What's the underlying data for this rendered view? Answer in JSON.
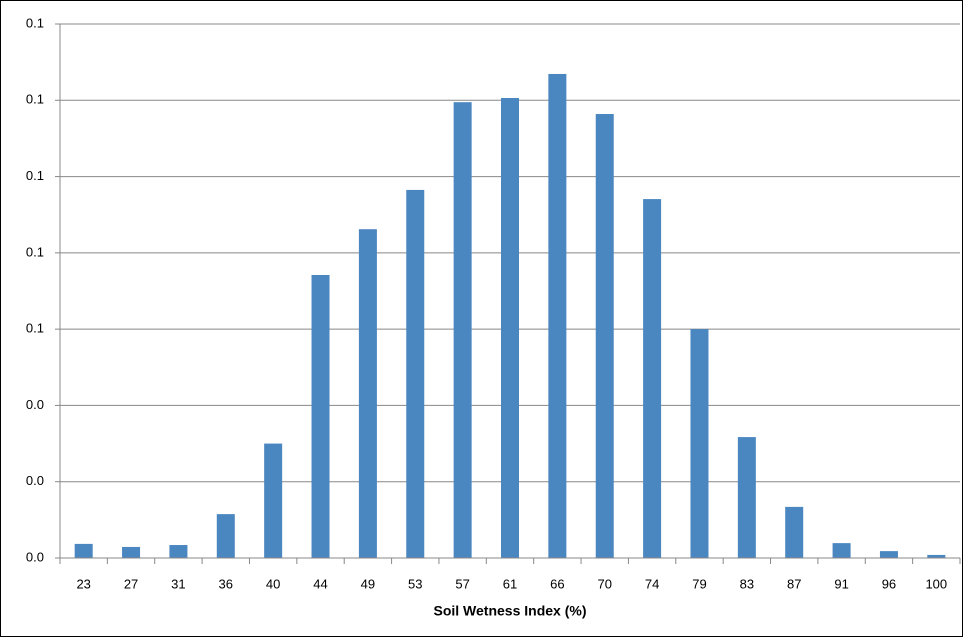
{
  "chart_data": {
    "type": "bar",
    "x_label": "Soil Wetness Index (%)",
    "categories": [
      "23",
      "27",
      "31",
      "36",
      "40",
      "44",
      "49",
      "53",
      "57",
      "61",
      "66",
      "70",
      "74",
      "79",
      "83",
      "87",
      "91",
      "96",
      "100"
    ],
    "values": [
      0.0037,
      0.0029,
      0.0034,
      0.0115,
      0.03,
      0.0742,
      0.0862,
      0.0965,
      0.1195,
      0.1206,
      0.1269,
      0.1164,
      0.0941,
      0.06,
      0.0317,
      0.0134,
      0.0039,
      0.0018,
      0.0008
    ],
    "color": "#4a86c0",
    "ylim": [
      0,
      0.14
    ],
    "yticks": [
      {
        "value": 0,
        "label": "0.0"
      },
      {
        "value": 0.02,
        "label": "0.0"
      },
      {
        "value": 0.04,
        "label": "0.0"
      },
      {
        "value": 0.06,
        "label": "0.1"
      },
      {
        "value": 0.08,
        "label": "0.1"
      },
      {
        "value": 0.1,
        "label": "0.1"
      },
      {
        "value": 0.12,
        "label": "0.1"
      },
      {
        "value": 0.14,
        "label": "0.1"
      }
    ],
    "grid": true
  }
}
